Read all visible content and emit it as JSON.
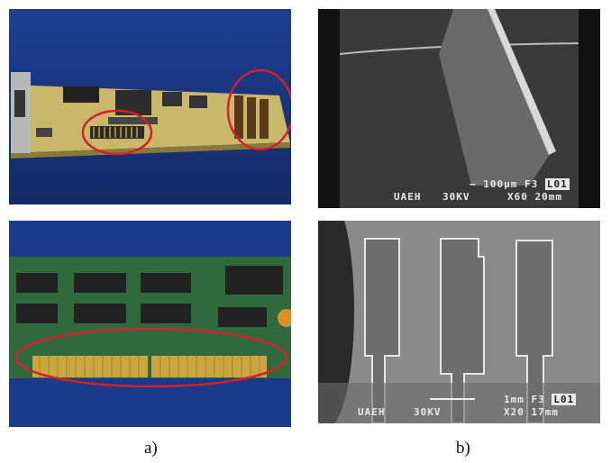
{
  "captions": {
    "a": "a)",
    "b": "b)"
  },
  "sem_top": {
    "operator": "UAEH",
    "voltage": "30KV",
    "scale": "100µm",
    "frame": "F3",
    "label": "L01",
    "mag": "X60",
    "wd": "20mm"
  },
  "sem_bottom": {
    "operator": "UAEH",
    "voltage": "30KV",
    "scale": "1mm",
    "frame": "F3",
    "label": "L01",
    "mag": "X20",
    "wd": "17mm"
  },
  "colors": {
    "photo_bg": "#1c3d8c",
    "pcb": "#c9b76a",
    "highlight": "#d3202a",
    "sem_bg": "#2a2a2a",
    "gold": "#c9a640"
  }
}
